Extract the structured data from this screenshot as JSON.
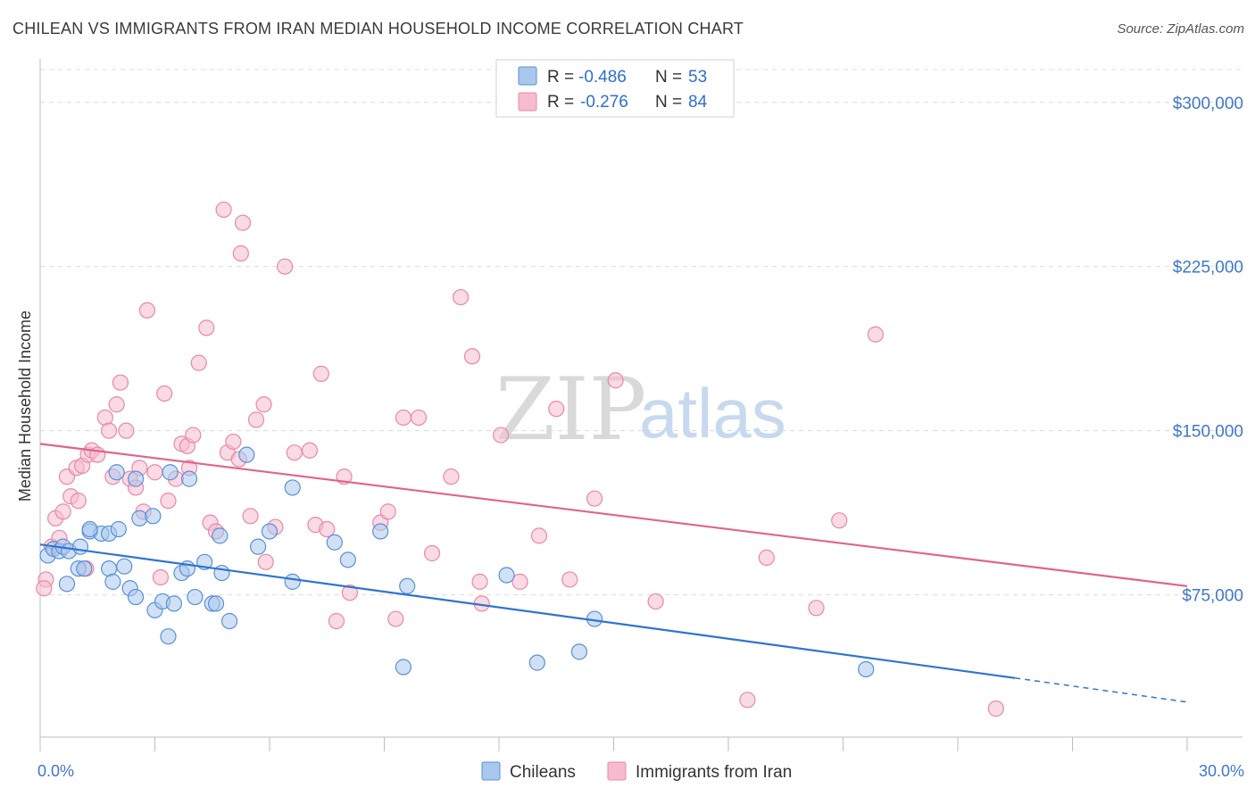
{
  "title": "CHILEAN VS IMMIGRANTS FROM IRAN MEDIAN HOUSEHOLD INCOME CORRELATION CHART",
  "source": "Source: ZipAtlas.com",
  "watermark": {
    "zip": "ZIP",
    "atlas": "atlas"
  },
  "colors": {
    "blue_fill": "#a9c8ee",
    "blue_stroke": "#5b8fd6",
    "blue_line": "#2f74d0",
    "pink_fill": "#f6bccd",
    "pink_stroke": "#e889a8",
    "pink_line": "#e0638e",
    "grid": "#dcdcdc",
    "tick_text": "#3f77c9"
  },
  "legend_top": {
    "rows": [
      {
        "r_label": "R =",
        "r_value": "-0.486",
        "n_label": "N =",
        "n_value": "53"
      },
      {
        "r_label": "R =",
        "r_value": "-0.276",
        "n_label": "N =",
        "n_value": "84"
      }
    ]
  },
  "chart_data": {
    "type": "scatter",
    "title": "CHILEAN VS IMMIGRANTS FROM IRAN MEDIAN HOUSEHOLD INCOME CORRELATION CHART",
    "xlabel": "",
    "ylabel": "Median Household Income",
    "xlim": [
      0,
      30
    ],
    "ylim": [
      10000,
      315000
    ],
    "x_tick_labels": [
      {
        "value": 0,
        "label": "0.0%"
      },
      {
        "value": 30,
        "label": "30.0%"
      }
    ],
    "y_ticks": [
      {
        "value": 75000,
        "label": "$75,000"
      },
      {
        "value": 150000,
        "label": "$150,000"
      },
      {
        "value": 225000,
        "label": "$225,000"
      },
      {
        "value": 300000,
        "label": "$300,000"
      }
    ],
    "series": [
      {
        "name": "Chileans",
        "color": "blue",
        "trend": {
          "x0": 0,
          "y0": 98000,
          "x1": 25.5,
          "y1": 37000,
          "dash_to_x": 30,
          "dash_to_y": 26000
        },
        "points": [
          [
            0.2,
            93000
          ],
          [
            0.35,
            96000
          ],
          [
            0.5,
            95000
          ],
          [
            0.6,
            97000
          ],
          [
            0.75,
            95000
          ],
          [
            1.05,
            97000
          ],
          [
            1.3,
            104000
          ],
          [
            1.6,
            103000
          ],
          [
            1.8,
            103000
          ],
          [
            2.05,
            105000
          ],
          [
            1.0,
            87000
          ],
          [
            1.15,
            87000
          ],
          [
            1.8,
            87000
          ],
          [
            1.9,
            81000
          ],
          [
            2.2,
            88000
          ],
          [
            2.35,
            78000
          ],
          [
            2.5,
            74000
          ],
          [
            2.5,
            128000
          ],
          [
            2.6,
            110000
          ],
          [
            2.95,
            111000
          ],
          [
            3.4,
            131000
          ],
          [
            3.0,
            68000
          ],
          [
            3.2,
            72000
          ],
          [
            3.35,
            56000
          ],
          [
            3.5,
            71000
          ],
          [
            3.7,
            85000
          ],
          [
            3.85,
            87000
          ],
          [
            3.9,
            128000
          ],
          [
            4.05,
            74000
          ],
          [
            4.3,
            90000
          ],
          [
            4.5,
            71000
          ],
          [
            4.6,
            71000
          ],
          [
            4.7,
            102000
          ],
          [
            4.75,
            85000
          ],
          [
            4.95,
            63000
          ],
          [
            5.4,
            139000
          ],
          [
            5.7,
            97000
          ],
          [
            6.0,
            104000
          ],
          [
            6.6,
            81000
          ],
          [
            6.6,
            124000
          ],
          [
            7.7,
            99000
          ],
          [
            8.05,
            91000
          ],
          [
            8.9,
            104000
          ],
          [
            9.6,
            79000
          ],
          [
            9.5,
            42000
          ],
          [
            12.2,
            84000
          ],
          [
            13.0,
            44000
          ],
          [
            14.5,
            64000
          ],
          [
            14.1,
            49000
          ],
          [
            21.6,
            41000
          ],
          [
            2.0,
            131000
          ],
          [
            1.3,
            105000
          ],
          [
            0.7,
            80000
          ]
        ]
      },
      {
        "name": "Immigrants from Iran",
        "color": "pink",
        "trend": {
          "x0": 0,
          "y0": 144000,
          "x1": 30,
          "y1": 79000
        },
        "points": [
          [
            0.15,
            82000
          ],
          [
            0.3,
            97000
          ],
          [
            0.4,
            110000
          ],
          [
            0.5,
            101000
          ],
          [
            0.6,
            113000
          ],
          [
            0.7,
            129000
          ],
          [
            0.8,
            120000
          ],
          [
            0.95,
            133000
          ],
          [
            1.0,
            118000
          ],
          [
            1.1,
            134000
          ],
          [
            1.25,
            139000
          ],
          [
            1.35,
            141000
          ],
          [
            1.5,
            139000
          ],
          [
            1.2,
            87000
          ],
          [
            1.7,
            156000
          ],
          [
            1.8,
            150000
          ],
          [
            1.9,
            129000
          ],
          [
            2.0,
            162000
          ],
          [
            2.1,
            172000
          ],
          [
            2.25,
            150000
          ],
          [
            2.35,
            128000
          ],
          [
            2.5,
            124000
          ],
          [
            2.6,
            133000
          ],
          [
            2.7,
            113000
          ],
          [
            2.8,
            205000
          ],
          [
            3.0,
            131000
          ],
          [
            3.15,
            83000
          ],
          [
            3.25,
            167000
          ],
          [
            3.35,
            118000
          ],
          [
            3.55,
            128000
          ],
          [
            3.7,
            144000
          ],
          [
            3.85,
            143000
          ],
          [
            3.9,
            133000
          ],
          [
            4.0,
            148000
          ],
          [
            4.15,
            181000
          ],
          [
            4.35,
            197000
          ],
          [
            4.45,
            108000
          ],
          [
            4.6,
            104000
          ],
          [
            4.8,
            251000
          ],
          [
            4.9,
            140000
          ],
          [
            5.05,
            145000
          ],
          [
            5.2,
            137000
          ],
          [
            5.25,
            231000
          ],
          [
            5.3,
            245000
          ],
          [
            5.5,
            111000
          ],
          [
            5.65,
            155000
          ],
          [
            5.85,
            162000
          ],
          [
            5.9,
            90000
          ],
          [
            6.15,
            106000
          ],
          [
            6.4,
            225000
          ],
          [
            6.65,
            140000
          ],
          [
            7.05,
            141000
          ],
          [
            7.2,
            107000
          ],
          [
            7.35,
            176000
          ],
          [
            7.5,
            105000
          ],
          [
            7.75,
            63000
          ],
          [
            7.95,
            129000
          ],
          [
            8.1,
            76000
          ],
          [
            8.9,
            108000
          ],
          [
            9.1,
            113000
          ],
          [
            9.3,
            64000
          ],
          [
            9.5,
            156000
          ],
          [
            9.9,
            156000
          ],
          [
            10.25,
            94000
          ],
          [
            10.75,
            129000
          ],
          [
            11.0,
            211000
          ],
          [
            11.3,
            184000
          ],
          [
            11.5,
            81000
          ],
          [
            11.55,
            71000
          ],
          [
            12.05,
            148000
          ],
          [
            12.55,
            81000
          ],
          [
            13.05,
            102000
          ],
          [
            13.5,
            160000
          ],
          [
            13.85,
            82000
          ],
          [
            14.5,
            119000
          ],
          [
            15.05,
            173000
          ],
          [
            16.1,
            72000
          ],
          [
            18.5,
            27000
          ],
          [
            19.0,
            92000
          ],
          [
            20.3,
            69000
          ],
          [
            20.9,
            109000
          ],
          [
            21.85,
            194000
          ],
          [
            25.0,
            23000
          ],
          [
            0.1,
            78000
          ]
        ]
      }
    ],
    "legend": [
      "Chileans",
      "Immigrants from Iran"
    ]
  }
}
